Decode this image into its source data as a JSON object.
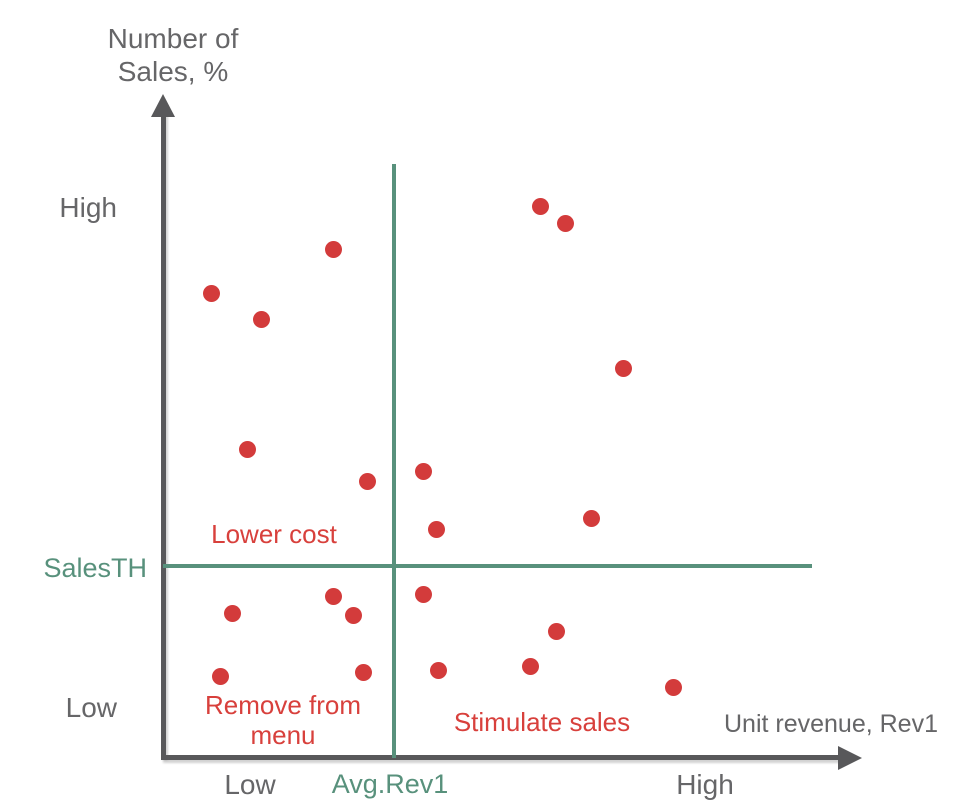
{
  "colors": {
    "axis": "#58585a",
    "text_gray": "#666668",
    "threshold_teal": "#58917c",
    "point_red": "#d33b3b",
    "label_red": "#d8403c"
  },
  "y_axis": {
    "title_line1": "Number of",
    "title_line2": "Sales, %",
    "tick_high": "High",
    "tick_low": "Low",
    "threshold_label": "SalesTH"
  },
  "x_axis": {
    "title": "Unit revenue, Rev1",
    "tick_low": "Low",
    "tick_high": "High",
    "threshold_label": "Avg.Rev1"
  },
  "quadrants": {
    "upper_left": "Lower cost",
    "lower_left": "Remove from menu",
    "lower_right": "Stimulate sales"
  },
  "chart_data": {
    "type": "scatter",
    "title": "",
    "xlabel": "Unit revenue, Rev1",
    "ylabel": "Number of Sales, %",
    "x_ticks": [
      "Low",
      "High"
    ],
    "y_ticks": [
      "Low",
      "High"
    ],
    "legend": [],
    "grid": false,
    "axis_scale_note": "qualitative axes; point coordinates given as percent of plot area (0=Low origin, 100=axis arrow end)",
    "x_threshold": {
      "label": "Avg.Rev1",
      "value_pct": 32.9
    },
    "y_threshold": {
      "label": "SalesTH",
      "value_pct": 29.3
    },
    "annotations": [
      "Lower cost",
      "Remove from menu",
      "Stimulate sales"
    ],
    "point_color": "#d33b3b",
    "points_pct": [
      {
        "x": 7.0,
        "y": 70.3
      },
      {
        "x": 14.2,
        "y": 66.3
      },
      {
        "x": 24.5,
        "y": 76.9
      },
      {
        "x": 12.1,
        "y": 46.7
      },
      {
        "x": 29.4,
        "y": 41.9
      },
      {
        "x": 54.2,
        "y": 83.4
      },
      {
        "x": 57.7,
        "y": 80.8
      },
      {
        "x": 66.0,
        "y": 58.9
      },
      {
        "x": 61.5,
        "y": 36.3
      },
      {
        "x": 37.4,
        "y": 43.3
      },
      {
        "x": 39.2,
        "y": 34.5
      },
      {
        "x": 9.9,
        "y": 21.9
      },
      {
        "x": 24.5,
        "y": 24.4
      },
      {
        "x": 27.3,
        "y": 21.5
      },
      {
        "x": 8.3,
        "y": 12.3
      },
      {
        "x": 28.7,
        "y": 13.0
      },
      {
        "x": 37.4,
        "y": 24.8
      },
      {
        "x": 39.5,
        "y": 13.2
      },
      {
        "x": 52.7,
        "y": 13.8
      },
      {
        "x": 56.4,
        "y": 19.1
      },
      {
        "x": 73.3,
        "y": 10.6
      }
    ]
  }
}
